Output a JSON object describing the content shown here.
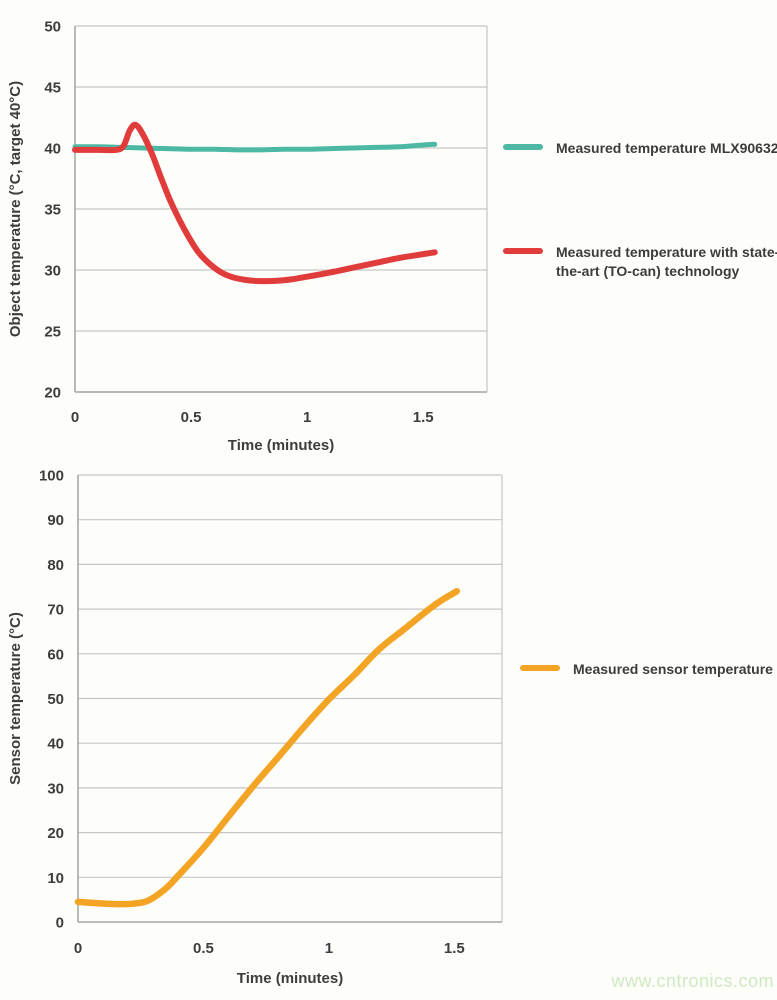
{
  "figure": {
    "watermark": "www.cntronics.com",
    "watermark_color": "#cfe9c3"
  },
  "chart_data": [
    {
      "type": "line",
      "title": "",
      "xlabel": "Time (minutes)",
      "ylabel": "Object temperature (°C, target 40°C)",
      "xlim": [
        0,
        1.775
      ],
      "ylim": [
        20,
        50
      ],
      "xticks": [
        0,
        0.5,
        1,
        1.5
      ],
      "yticks": [
        20,
        25,
        30,
        35,
        40,
        45,
        50
      ],
      "grid": "horizontal",
      "legend_position": "right",
      "series": [
        {
          "name": "Measured temperature MLX90632",
          "color": "#4db9a4",
          "stroke_width": 5,
          "x": [
            0,
            0.1,
            0.2,
            0.3,
            0.4,
            0.5,
            0.6,
            0.7,
            0.8,
            0.9,
            1,
            1.1,
            1.2,
            1.3,
            1.4,
            1.5,
            1.55
          ],
          "y": [
            40.1,
            40.1,
            40.05,
            40,
            39.95,
            39.9,
            39.9,
            39.85,
            39.85,
            39.9,
            39.9,
            39.95,
            40,
            40.05,
            40.1,
            40.25,
            40.3
          ]
        },
        {
          "name": "Measured temperature with state-of-the-art (TO-can) technology",
          "color": "#e13c3c",
          "stroke_width": 6,
          "x": [
            0,
            0.1,
            0.18,
            0.21,
            0.235,
            0.26,
            0.29,
            0.33,
            0.37,
            0.41,
            0.45,
            0.49,
            0.53,
            0.58,
            0.63,
            0.68,
            0.73,
            0.78,
            0.85,
            0.92,
            1,
            1.1,
            1.2,
            1.3,
            1.4,
            1.5,
            1.55
          ],
          "y": [
            39.85,
            39.85,
            39.85,
            40.2,
            41.4,
            41.9,
            41.2,
            39.6,
            37.6,
            35.7,
            34.1,
            32.7,
            31.5,
            30.5,
            29.8,
            29.4,
            29.2,
            29.1,
            29.1,
            29.2,
            29.45,
            29.8,
            30.2,
            30.6,
            31,
            31.3,
            31.45
          ]
        }
      ]
    },
    {
      "type": "line",
      "title": "",
      "xlabel": "Time (minutes)",
      "ylabel": "Sensor temperature (°C)",
      "xlim": [
        0,
        1.69
      ],
      "ylim": [
        0,
        100
      ],
      "xticks": [
        0,
        0.5,
        1,
        1.5
      ],
      "yticks": [
        0,
        10,
        20,
        30,
        40,
        50,
        60,
        70,
        80,
        90,
        100
      ],
      "grid": "horizontal",
      "legend_position": "right",
      "series": [
        {
          "name": "Measured sensor temperature",
          "color": "#f4a425",
          "stroke_width": 6.5,
          "x": [
            0,
            0.08,
            0.15,
            0.22,
            0.28,
            0.35,
            0.4,
            0.5,
            0.6,
            0.7,
            0.8,
            0.9,
            1,
            1.1,
            1.2,
            1.3,
            1.4,
            1.45,
            1.51
          ],
          "y": [
            4.5,
            4.2,
            4,
            4.1,
            4.8,
            7.5,
            10.4,
            16.6,
            23.6,
            30.5,
            37,
            43.6,
            49.8,
            55.2,
            61,
            65.5,
            70,
            72,
            74
          ]
        }
      ]
    }
  ]
}
